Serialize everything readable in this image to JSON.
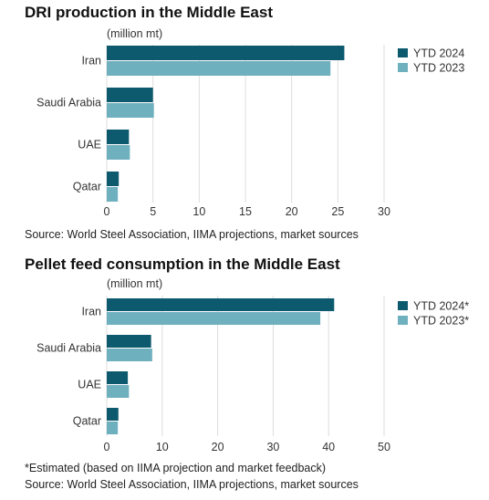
{
  "colors": {
    "series_2024": "#0d5a6e",
    "series_2023": "#6fb0be",
    "grid": "#dddddd"
  },
  "chart_data": [
    {
      "type": "bar",
      "orientation": "horizontal",
      "title": "DRI production in the Middle East",
      "unit_label": "(million mt)",
      "categories": [
        "Iran",
        "Saudi Arabia",
        "UAE",
        "Qatar"
      ],
      "series": [
        {
          "name": "YTD 2024",
          "values": [
            25.7,
            5.0,
            2.4,
            1.3
          ]
        },
        {
          "name": "YTD 2023",
          "values": [
            24.2,
            5.1,
            2.5,
            1.2
          ]
        }
      ],
      "xlim": [
        0,
        30
      ],
      "ticks": [
        0,
        5,
        10,
        15,
        20,
        25,
        30
      ],
      "grid": true,
      "legend_position": "top-right",
      "source": "Source: World Steel Association, IIMA projections, market sources"
    },
    {
      "type": "bar",
      "orientation": "horizontal",
      "title": "Pellet feed consumption in the Middle East",
      "unit_label": "(million mt)",
      "categories": [
        "Iran",
        "Saudi Arabia",
        "UAE",
        "Qatar"
      ],
      "series": [
        {
          "name": "YTD 2024*",
          "values": [
            41.0,
            8.0,
            3.8,
            2.1
          ]
        },
        {
          "name": "YTD 2023*",
          "values": [
            38.5,
            8.2,
            4.0,
            2.0
          ]
        }
      ],
      "xlim": [
        0,
        50
      ],
      "ticks": [
        0,
        10,
        20,
        30,
        40,
        50
      ],
      "grid": true,
      "legend_position": "top-right",
      "note": "*Estimated (based on IIMA projection and market feedback)",
      "source": "Source: World Steel Association, IIMA projections, market sources"
    }
  ]
}
